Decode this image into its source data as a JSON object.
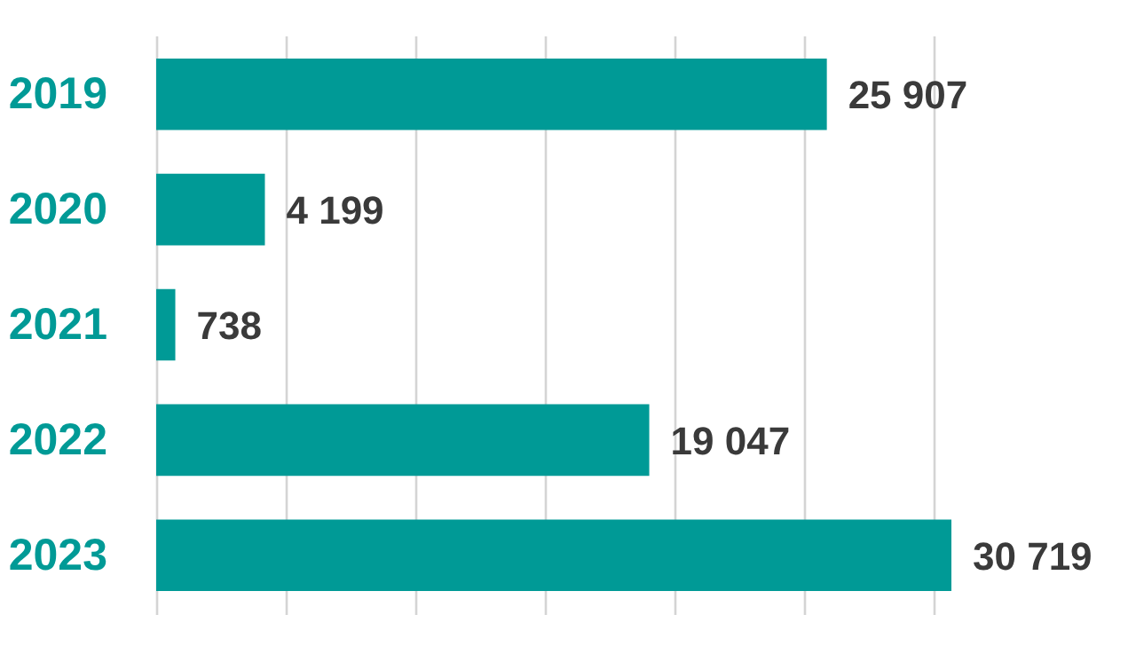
{
  "chart_data": {
    "type": "bar",
    "orientation": "horizontal",
    "categories": [
      "2019",
      "2020",
      "2021",
      "2022",
      "2023"
    ],
    "values": [
      25907,
      4199,
      738,
      19047,
      30719
    ],
    "value_labels": [
      "25 907",
      "4 199",
      "738",
      "19 047",
      "30 719"
    ],
    "color": "#009a96",
    "xticks": [
      {
        "value": 0,
        "label": null
      },
      {
        "value": 5000,
        "label": null
      },
      {
        "value": 10000,
        "label": null
      },
      {
        "value": 15000,
        "label": null
      },
      {
        "value": 20000,
        "label": null
      },
      {
        "value": 25000,
        "label": null
      },
      {
        "value": 30000,
        "label": null
      }
    ],
    "grid": "x",
    "tick_labels": "y"
  }
}
